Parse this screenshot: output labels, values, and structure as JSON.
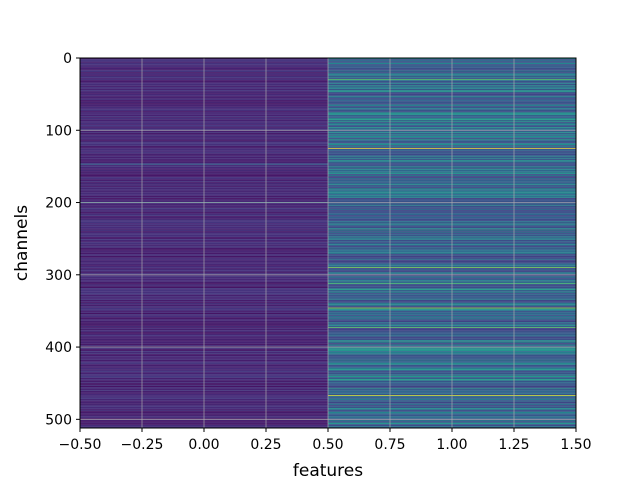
{
  "chart_data": {
    "type": "heatmap",
    "title": "",
    "xlabel": "features",
    "ylabel": "channels",
    "xlim": [
      -0.5,
      1.5
    ],
    "ylim": [
      512,
      0
    ],
    "y_inverted": true,
    "grid": true,
    "colormap": "viridis",
    "value_range": [
      0,
      1
    ],
    "x_ticks": [
      -0.5,
      -0.25,
      0.0,
      0.25,
      0.5,
      0.75,
      1.0,
      1.25,
      1.5
    ],
    "x_tick_labels": [
      "−0.50",
      "−0.25",
      "0.00",
      "0.25",
      "0.50",
      "0.75",
      "1.00",
      "1.25",
      "1.50"
    ],
    "y_ticks": [
      0,
      100,
      200,
      300,
      400,
      500
    ],
    "y_tick_labels": [
      "0",
      "100",
      "200",
      "300",
      "400",
      "500"
    ],
    "columns": [
      0,
      1
    ],
    "rows": 512,
    "column_baseline": [
      0.05,
      0.2
    ],
    "highlighted_rows": [
      {
        "channel": 30,
        "column": 1,
        "value": 0.75
      },
      {
        "channel": 78,
        "column": 1,
        "value": 0.5
      },
      {
        "channel": 106,
        "column": 1,
        "value": 0.45
      },
      {
        "channel": 125,
        "column": 1,
        "value": 1.0
      },
      {
        "channel": 147,
        "column": 0,
        "value": 0.35
      },
      {
        "channel": 163,
        "column": 1,
        "value": 0.5
      },
      {
        "channel": 200,
        "column": 0,
        "value": 0.4
      },
      {
        "channel": 238,
        "column": 1,
        "value": 0.55
      },
      {
        "channel": 249,
        "column": 1,
        "value": 0.5
      },
      {
        "channel": 290,
        "column": 1,
        "value": 0.8
      },
      {
        "channel": 312,
        "column": 1,
        "value": 0.7
      },
      {
        "channel": 320,
        "column": 1,
        "value": 0.55
      },
      {
        "channel": 346,
        "column": 1,
        "value": 0.85
      },
      {
        "channel": 373,
        "column": 1,
        "value": 0.75
      },
      {
        "channel": 392,
        "column": 1,
        "value": 0.55
      },
      {
        "channel": 404,
        "column": 1,
        "value": 0.5
      },
      {
        "channel": 430,
        "column": 1,
        "value": 0.5
      },
      {
        "channel": 445,
        "column": 1,
        "value": 0.55
      },
      {
        "channel": 467,
        "column": 1,
        "value": 0.95
      },
      {
        "channel": 491,
        "column": 1,
        "value": 0.45
      },
      {
        "channel": 505,
        "column": 1,
        "value": 0.5
      }
    ]
  },
  "colors": {
    "background": "#ffffff",
    "axis": "#000000",
    "grid": "#b0b0b0"
  }
}
